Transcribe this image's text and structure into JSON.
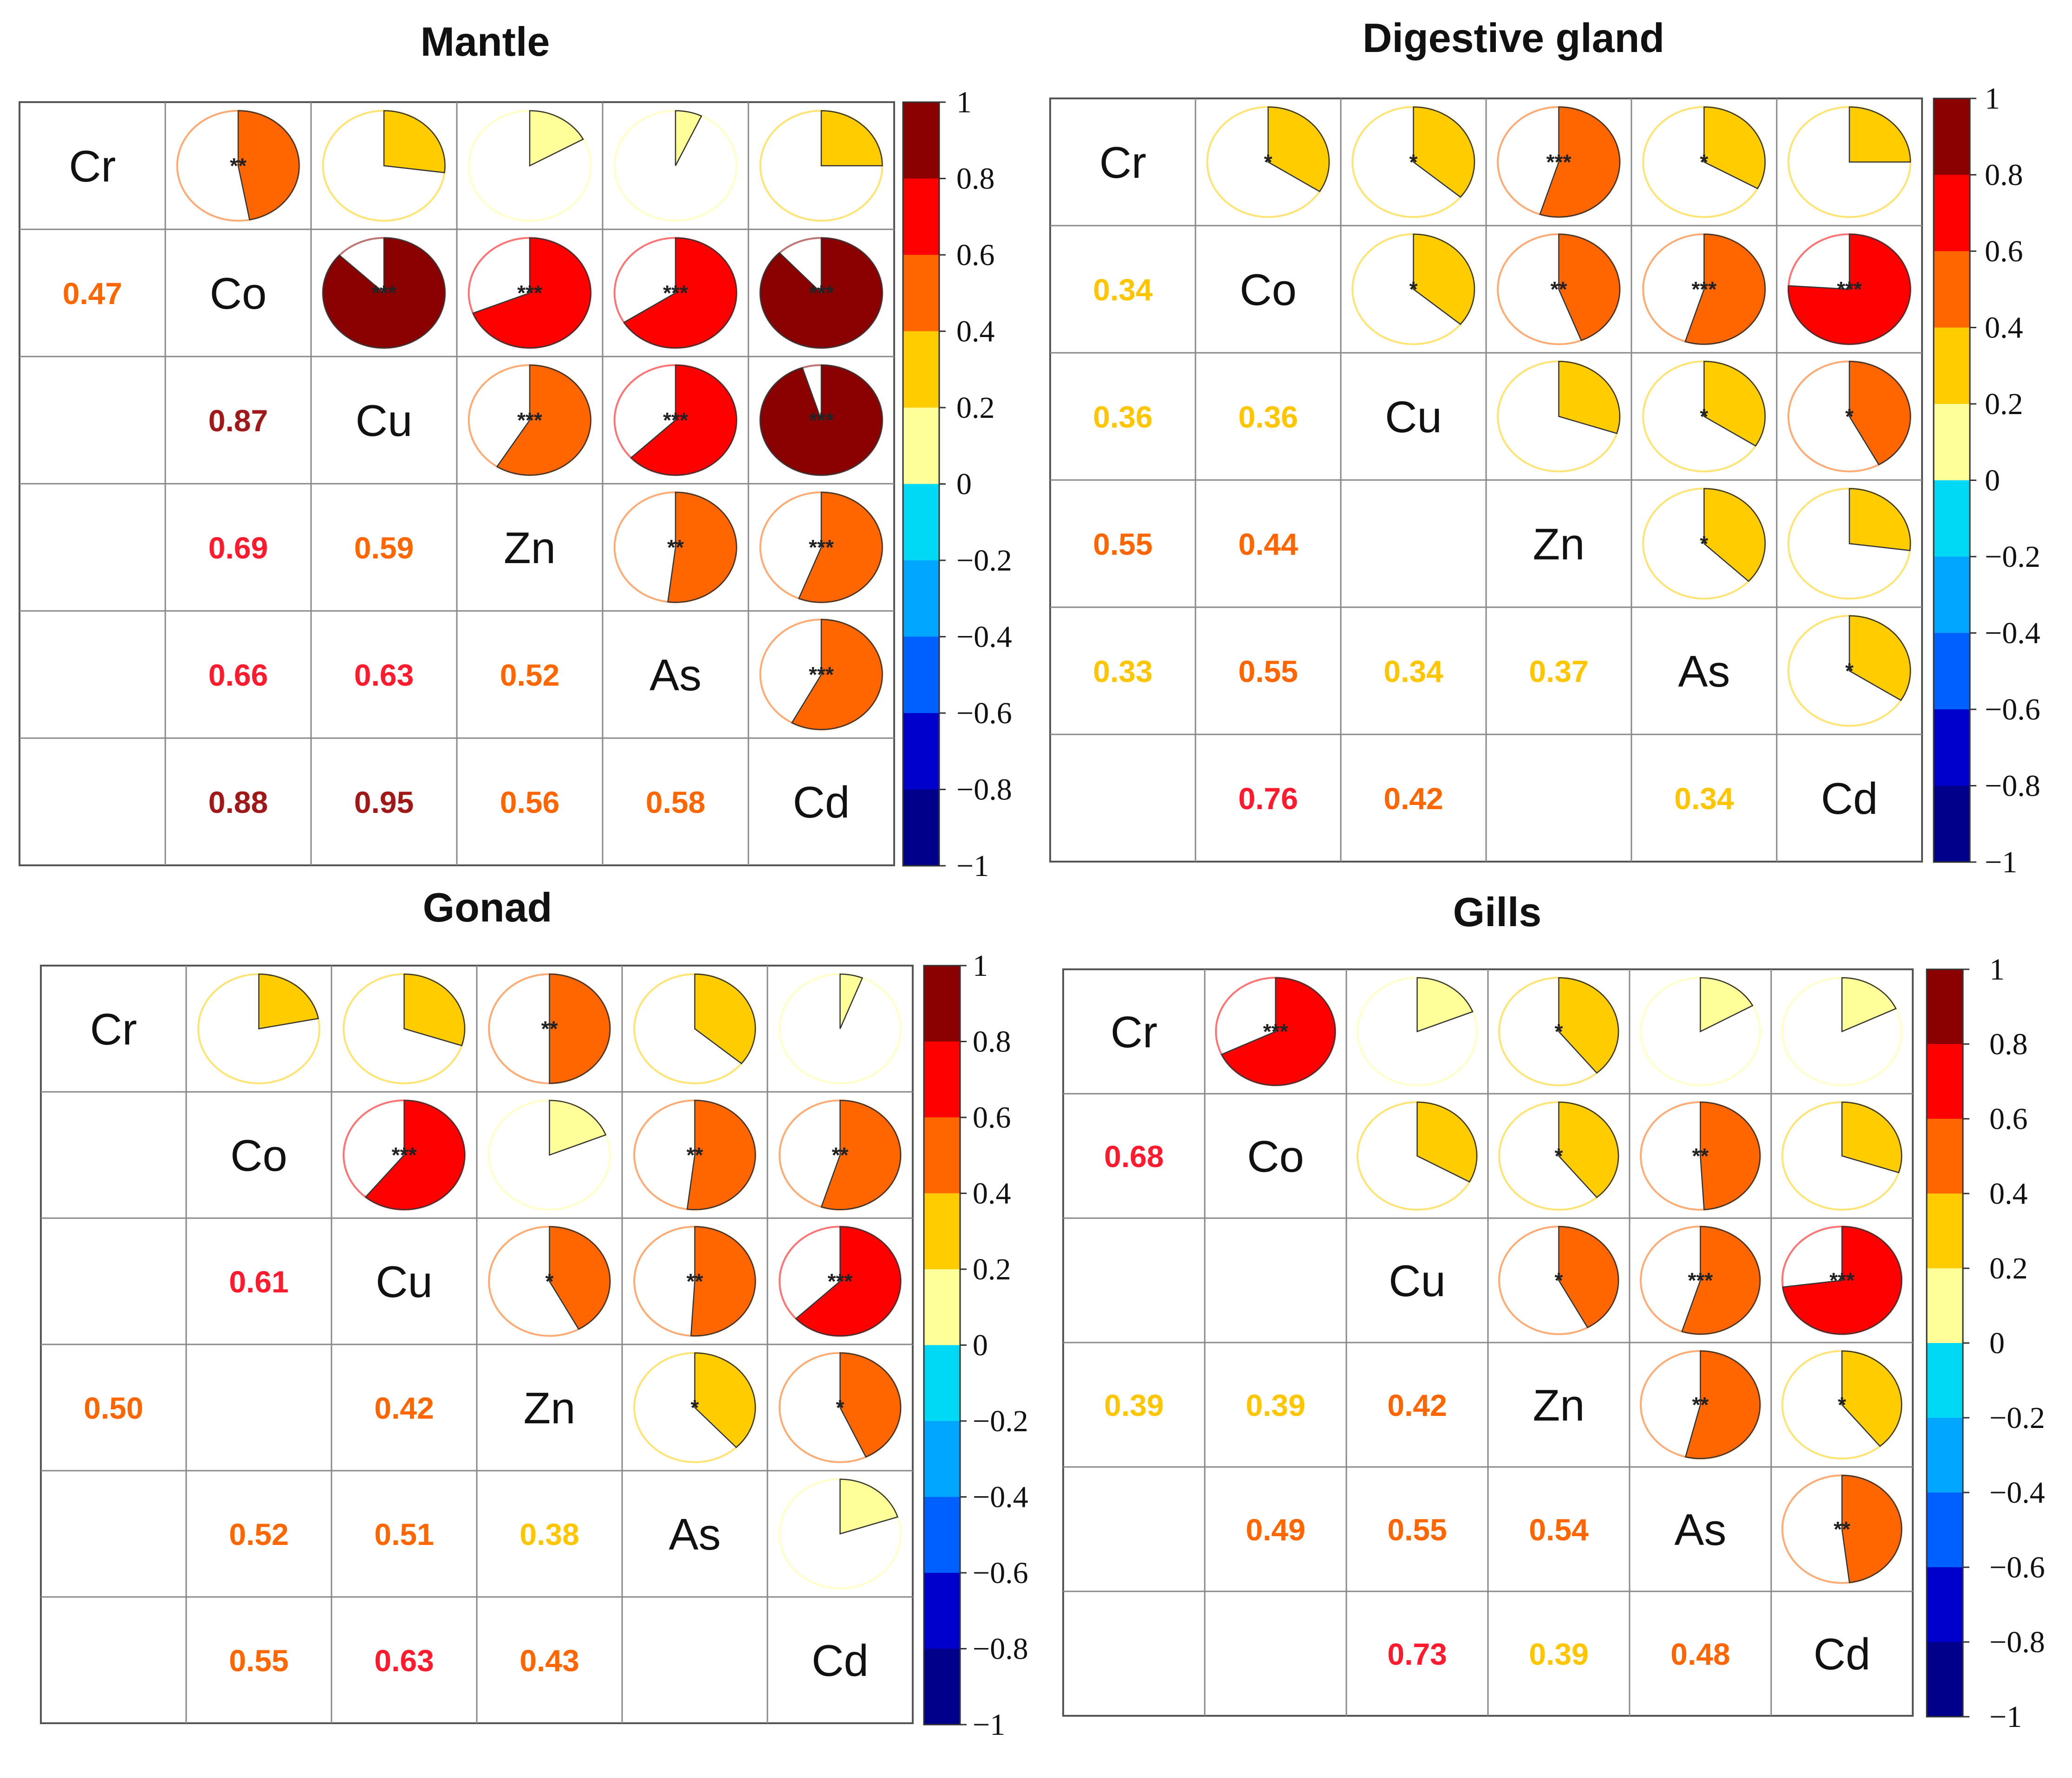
{
  "chart_data": [
    {
      "type": "heatmap",
      "title": "Mantle",
      "variables": [
        "Cr",
        "Co",
        "Cu",
        "Zn",
        "As",
        "Cd"
      ],
      "value_range": [
        -1,
        1
      ],
      "colorbar_ticks": [
        "1",
        "0.8",
        "0.6",
        "0.4",
        "0.2",
        "0",
        "−0.2",
        "−0.4",
        "−0.6",
        "−0.8",
        "−1"
      ],
      "lower_labels": [
        {
          "row": 1,
          "col": 0,
          "text": "0.47",
          "value": 0.47
        },
        {
          "row": 2,
          "col": 1,
          "text": "0.87",
          "value": 0.87
        },
        {
          "row": 3,
          "col": 1,
          "text": "0.69",
          "value": 0.69
        },
        {
          "row": 3,
          "col": 2,
          "text": "0.59",
          "value": 0.59
        },
        {
          "row": 4,
          "col": 1,
          "text": "0.66",
          "value": 0.66
        },
        {
          "row": 4,
          "col": 2,
          "text": "0.63",
          "value": 0.63
        },
        {
          "row": 4,
          "col": 3,
          "text": "0.52",
          "value": 0.52
        },
        {
          "row": 5,
          "col": 1,
          "text": "0.88",
          "value": 0.88
        },
        {
          "row": 5,
          "col": 2,
          "text": "0.95",
          "value": 0.95
        },
        {
          "row": 5,
          "col": 3,
          "text": "0.56",
          "value": 0.56
        },
        {
          "row": 5,
          "col": 4,
          "text": "0.58",
          "value": 0.58
        }
      ],
      "upper_pies": [
        {
          "row": 0,
          "col": 1,
          "value": 0.47,
          "sig": "**"
        },
        {
          "row": 0,
          "col": 2,
          "value": 0.27,
          "sig": ""
        },
        {
          "row": 0,
          "col": 3,
          "value": 0.17,
          "sig": ""
        },
        {
          "row": 0,
          "col": 4,
          "value": 0.07,
          "sig": ""
        },
        {
          "row": 0,
          "col": 5,
          "value": 0.25,
          "sig": ""
        },
        {
          "row": 1,
          "col": 2,
          "value": 0.87,
          "sig": "***"
        },
        {
          "row": 1,
          "col": 3,
          "value": 0.69,
          "sig": "***"
        },
        {
          "row": 1,
          "col": 4,
          "value": 0.66,
          "sig": "***"
        },
        {
          "row": 1,
          "col": 5,
          "value": 0.88,
          "sig": "***"
        },
        {
          "row": 2,
          "col": 3,
          "value": 0.59,
          "sig": "***"
        },
        {
          "row": 2,
          "col": 4,
          "value": 0.63,
          "sig": "***"
        },
        {
          "row": 2,
          "col": 5,
          "value": 0.95,
          "sig": "***"
        },
        {
          "row": 3,
          "col": 4,
          "value": 0.52,
          "sig": "**"
        },
        {
          "row": 3,
          "col": 5,
          "value": 0.56,
          "sig": "***"
        },
        {
          "row": 4,
          "col": 5,
          "value": 0.58,
          "sig": "***"
        }
      ]
    },
    {
      "type": "heatmap",
      "title": "Digestive gland",
      "variables": [
        "Cr",
        "Co",
        "Cu",
        "Zn",
        "As",
        "Cd"
      ],
      "value_range": [
        -1,
        1
      ],
      "colorbar_ticks": [
        "1",
        "0.8",
        "0.6",
        "0.4",
        "0.2",
        "0",
        "−0.2",
        "−0.4",
        "−0.6",
        "−0.8",
        "−1"
      ],
      "lower_labels": [
        {
          "row": 1,
          "col": 0,
          "text": "0.34",
          "value": 0.34
        },
        {
          "row": 2,
          "col": 0,
          "text": "0.36",
          "value": 0.36
        },
        {
          "row": 2,
          "col": 1,
          "text": "0.36",
          "value": 0.36
        },
        {
          "row": 3,
          "col": 0,
          "text": "0.55",
          "value": 0.55
        },
        {
          "row": 3,
          "col": 1,
          "text": "0.44",
          "value": 0.44
        },
        {
          "row": 4,
          "col": 0,
          "text": "0.33",
          "value": 0.33
        },
        {
          "row": 4,
          "col": 1,
          "text": "0.55",
          "value": 0.55
        },
        {
          "row": 4,
          "col": 2,
          "text": "0.34",
          "value": 0.34
        },
        {
          "row": 4,
          "col": 3,
          "text": "0.37",
          "value": 0.37
        },
        {
          "row": 5,
          "col": 1,
          "text": "0.76",
          "value": 0.76
        },
        {
          "row": 5,
          "col": 2,
          "text": "0.42",
          "value": 0.42
        },
        {
          "row": 5,
          "col": 4,
          "text": "0.34",
          "value": 0.34
        }
      ],
      "upper_pies": [
        {
          "row": 0,
          "col": 1,
          "value": 0.34,
          "sig": "*"
        },
        {
          "row": 0,
          "col": 2,
          "value": 0.36,
          "sig": "*"
        },
        {
          "row": 0,
          "col": 3,
          "value": 0.55,
          "sig": "***"
        },
        {
          "row": 0,
          "col": 4,
          "value": 0.33,
          "sig": "*"
        },
        {
          "row": 0,
          "col": 5,
          "value": 0.25,
          "sig": ""
        },
        {
          "row": 1,
          "col": 2,
          "value": 0.36,
          "sig": "*"
        },
        {
          "row": 1,
          "col": 3,
          "value": 0.44,
          "sig": "**"
        },
        {
          "row": 1,
          "col": 4,
          "value": 0.55,
          "sig": "***"
        },
        {
          "row": 1,
          "col": 5,
          "value": 0.76,
          "sig": "***"
        },
        {
          "row": 2,
          "col": 3,
          "value": 0.3,
          "sig": ""
        },
        {
          "row": 2,
          "col": 4,
          "value": 0.34,
          "sig": "*"
        },
        {
          "row": 2,
          "col": 5,
          "value": 0.42,
          "sig": "*"
        },
        {
          "row": 3,
          "col": 4,
          "value": 0.37,
          "sig": "*"
        },
        {
          "row": 3,
          "col": 5,
          "value": 0.27,
          "sig": ""
        },
        {
          "row": 4,
          "col": 5,
          "value": 0.34,
          "sig": "*"
        }
      ]
    },
    {
      "type": "heatmap",
      "title": "Gonad",
      "variables": [
        "Cr",
        "Co",
        "Cu",
        "Zn",
        "As",
        "Cd"
      ],
      "value_range": [
        -1,
        1
      ],
      "colorbar_ticks": [
        "1",
        "0.8",
        "0.6",
        "0.4",
        "0.2",
        "0",
        "−0.2",
        "−0.4",
        "−0.6",
        "−0.8",
        "−1"
      ],
      "lower_labels": [
        {
          "row": 2,
          "col": 1,
          "text": "0.61",
          "value": 0.61
        },
        {
          "row": 3,
          "col": 0,
          "text": "0.50",
          "value": 0.5
        },
        {
          "row": 3,
          "col": 2,
          "text": "0.42",
          "value": 0.42
        },
        {
          "row": 4,
          "col": 1,
          "text": "0.52",
          "value": 0.52
        },
        {
          "row": 4,
          "col": 2,
          "text": "0.51",
          "value": 0.51
        },
        {
          "row": 4,
          "col": 3,
          "text": "0.38",
          "value": 0.38
        },
        {
          "row": 5,
          "col": 1,
          "text": "0.55",
          "value": 0.55
        },
        {
          "row": 5,
          "col": 2,
          "text": "0.63",
          "value": 0.63
        },
        {
          "row": 5,
          "col": 3,
          "text": "0.43",
          "value": 0.43
        }
      ],
      "upper_pies": [
        {
          "row": 0,
          "col": 1,
          "value": 0.22,
          "sig": ""
        },
        {
          "row": 0,
          "col": 2,
          "value": 0.3,
          "sig": ""
        },
        {
          "row": 0,
          "col": 3,
          "value": 0.5,
          "sig": "**"
        },
        {
          "row": 0,
          "col": 4,
          "value": 0.36,
          "sig": ""
        },
        {
          "row": 0,
          "col": 5,
          "value": 0.06,
          "sig": ""
        },
        {
          "row": 1,
          "col": 2,
          "value": 0.61,
          "sig": "***"
        },
        {
          "row": 1,
          "col": 3,
          "value": 0.19,
          "sig": ""
        },
        {
          "row": 1,
          "col": 4,
          "value": 0.52,
          "sig": "**"
        },
        {
          "row": 1,
          "col": 5,
          "value": 0.55,
          "sig": "**"
        },
        {
          "row": 2,
          "col": 3,
          "value": 0.42,
          "sig": "*"
        },
        {
          "row": 2,
          "col": 4,
          "value": 0.51,
          "sig": "**"
        },
        {
          "row": 2,
          "col": 5,
          "value": 0.63,
          "sig": "***"
        },
        {
          "row": 3,
          "col": 4,
          "value": 0.38,
          "sig": "*"
        },
        {
          "row": 3,
          "col": 5,
          "value": 0.43,
          "sig": "*"
        },
        {
          "row": 4,
          "col": 5,
          "value": 0.2,
          "sig": ""
        }
      ]
    },
    {
      "type": "heatmap",
      "title": "Gills",
      "variables": [
        "Cr",
        "Co",
        "Cu",
        "Zn",
        "As",
        "Cd"
      ],
      "value_range": [
        -1,
        1
      ],
      "colorbar_ticks": [
        "1",
        "0.8",
        "0.6",
        "0.4",
        "0.2",
        "0",
        "−0.2",
        "−0.4",
        "−0.6",
        "−0.8",
        "−1"
      ],
      "lower_labels": [
        {
          "row": 1,
          "col": 0,
          "text": "0.68",
          "value": 0.68
        },
        {
          "row": 3,
          "col": 0,
          "text": "0.39",
          "value": 0.39
        },
        {
          "row": 3,
          "col": 1,
          "text": "0.39",
          "value": 0.39
        },
        {
          "row": 3,
          "col": 2,
          "text": "0.42",
          "value": 0.42
        },
        {
          "row": 4,
          "col": 1,
          "text": "0.49",
          "value": 0.49
        },
        {
          "row": 4,
          "col": 2,
          "text": "0.55",
          "value": 0.55
        },
        {
          "row": 4,
          "col": 3,
          "text": "0.54",
          "value": 0.54
        },
        {
          "row": 5,
          "col": 2,
          "text": "0.73",
          "value": 0.73
        },
        {
          "row": 5,
          "col": 3,
          "text": "0.39",
          "value": 0.39
        },
        {
          "row": 5,
          "col": 4,
          "text": "0.48",
          "value": 0.48
        }
      ],
      "upper_pies": [
        {
          "row": 0,
          "col": 1,
          "value": 0.68,
          "sig": "***"
        },
        {
          "row": 0,
          "col": 2,
          "value": 0.19,
          "sig": ""
        },
        {
          "row": 0,
          "col": 3,
          "value": 0.39,
          "sig": "*"
        },
        {
          "row": 0,
          "col": 4,
          "value": 0.17,
          "sig": ""
        },
        {
          "row": 0,
          "col": 5,
          "value": 0.18,
          "sig": ""
        },
        {
          "row": 1,
          "col": 2,
          "value": 0.33,
          "sig": ""
        },
        {
          "row": 1,
          "col": 3,
          "value": 0.39,
          "sig": "*"
        },
        {
          "row": 1,
          "col": 4,
          "value": 0.49,
          "sig": "**"
        },
        {
          "row": 1,
          "col": 5,
          "value": 0.3,
          "sig": ""
        },
        {
          "row": 2,
          "col": 3,
          "value": 0.42,
          "sig": "*"
        },
        {
          "row": 2,
          "col": 4,
          "value": 0.55,
          "sig": "***"
        },
        {
          "row": 2,
          "col": 5,
          "value": 0.73,
          "sig": "***"
        },
        {
          "row": 3,
          "col": 4,
          "value": 0.54,
          "sig": "**"
        },
        {
          "row": 3,
          "col": 5,
          "value": 0.39,
          "sig": "*"
        },
        {
          "row": 4,
          "col": 5,
          "value": 0.48,
          "sig": "**"
        }
      ]
    }
  ],
  "colors": {
    "colorbar_bins": [
      "#00008B",
      "#0000CD",
      "#0060FF",
      "#00A6FF",
      "#00D9F5",
      "#FFFF99",
      "#FFCC00",
      "#FF6600",
      "#FF0000",
      "#8B0000"
    ],
    "label_bins": [
      "#00008B",
      "#0000CD",
      "#0060FF",
      "#00A6FF",
      "#00D9F5",
      "#F2D300",
      "#FFC600",
      "#FF6600",
      "#FF1A2E",
      "#A01818"
    ],
    "grid": "#888888",
    "frame": "#555555"
  }
}
